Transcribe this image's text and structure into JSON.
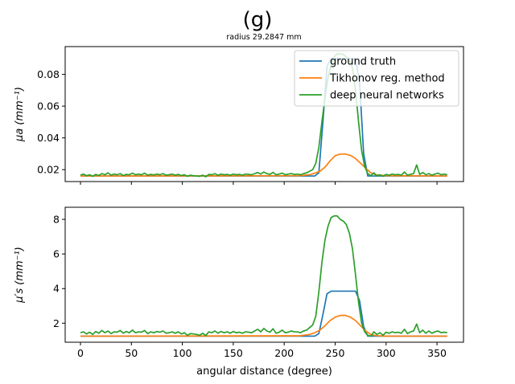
{
  "figure": {
    "title": "(g)",
    "subtitle": "radius 29.2847 mm"
  },
  "legend": {
    "placement": "top-right",
    "entries": [
      "ground truth",
      "Tikhonov reg. method",
      "deep neural networks"
    ]
  },
  "colors": {
    "ground_truth": "#1f77b4",
    "tikhonov": "#ff7f0e",
    "dnn": "#2ca02c"
  },
  "chart_data": [
    {
      "type": "line",
      "panel": "top",
      "ylabel": "μa (mm⁻¹)",
      "xlim": [
        -15,
        376
      ],
      "ylim": [
        0.0125,
        0.0975
      ],
      "yticks": [
        0.02,
        0.04,
        0.06,
        0.08
      ],
      "ytick_labels": [
        "0.02",
        "0.04",
        "0.06",
        "0.08"
      ],
      "xticks": [
        0,
        50,
        100,
        150,
        200,
        250,
        300,
        350
      ],
      "show_xtick_labels": false,
      "series": [
        {
          "name": "ground truth",
          "x": [
            0,
            230,
            234,
            238,
            242,
            246,
            250,
            270,
            274,
            278,
            282,
            360
          ],
          "y": [
            0.016,
            0.016,
            0.018,
            0.05,
            0.085,
            0.09,
            0.09,
            0.09,
            0.075,
            0.03,
            0.016,
            0.016
          ]
        },
        {
          "name": "Tikhonov reg. method",
          "x": [
            0,
            215,
            225,
            230,
            235,
            240,
            245,
            250,
            255,
            260,
            265,
            270,
            275,
            280,
            285,
            290,
            300,
            360
          ],
          "y": [
            0.016,
            0.0162,
            0.0168,
            0.0178,
            0.019,
            0.0215,
            0.0255,
            0.0288,
            0.0298,
            0.0298,
            0.029,
            0.027,
            0.024,
            0.021,
            0.018,
            0.0168,
            0.0162,
            0.016
          ]
        },
        {
          "name": "deep neural networks",
          "x": [
            0,
            3,
            6,
            9,
            12,
            15,
            18,
            21,
            24,
            27,
            30,
            33,
            36,
            39,
            42,
            45,
            48,
            51,
            54,
            57,
            60,
            63,
            66,
            69,
            72,
            75,
            78,
            81,
            84,
            87,
            90,
            93,
            96,
            99,
            102,
            105,
            108,
            111,
            114,
            117,
            120,
            123,
            126,
            129,
            132,
            135,
            138,
            141,
            144,
            147,
            150,
            153,
            156,
            159,
            162,
            165,
            168,
            171,
            174,
            177,
            180,
            183,
            186,
            189,
            192,
            195,
            198,
            201,
            204,
            207,
            210,
            213,
            216,
            219,
            222,
            225,
            228,
            231,
            234,
            237,
            240,
            243,
            246,
            249,
            252,
            255,
            258,
            261,
            264,
            267,
            270,
            273,
            276,
            279,
            282,
            285,
            288,
            291,
            294,
            297,
            300,
            303,
            306,
            309,
            312,
            315,
            318,
            321,
            324,
            327,
            330,
            333,
            336,
            339,
            342,
            345,
            348,
            351,
            354,
            357,
            360
          ],
          "y": [
            0.0165,
            0.0172,
            0.0162,
            0.0168,
            0.0158,
            0.017,
            0.0163,
            0.0175,
            0.0168,
            0.018,
            0.0165,
            0.0172,
            0.0168,
            0.0175,
            0.0163,
            0.017,
            0.0168,
            0.0178,
            0.0168,
            0.0172,
            0.0168,
            0.0178,
            0.0165,
            0.017,
            0.0167,
            0.0172,
            0.0168,
            0.0175,
            0.0165,
            0.0168,
            0.0172,
            0.0165,
            0.017,
            0.0163,
            0.0168,
            0.0158,
            0.0165,
            0.0162,
            0.016,
            0.0158,
            0.0165,
            0.0155,
            0.017,
            0.0168,
            0.0175,
            0.0165,
            0.0172,
            0.0168,
            0.017,
            0.0165,
            0.0172,
            0.0168,
            0.017,
            0.0165,
            0.0172,
            0.017,
            0.0168,
            0.0175,
            0.0182,
            0.0172,
            0.0185,
            0.0175,
            0.017,
            0.0183,
            0.0168,
            0.0172,
            0.0178,
            0.0168,
            0.0172,
            0.0175,
            0.017,
            0.0172,
            0.0168,
            0.0175,
            0.018,
            0.019,
            0.02,
            0.024,
            0.034,
            0.05,
            0.065,
            0.078,
            0.086,
            0.091,
            0.093,
            0.093,
            0.0925,
            0.091,
            0.089,
            0.084,
            0.07,
            0.05,
            0.032,
            0.022,
            0.0175,
            0.0162,
            0.018,
            0.016,
            0.0168,
            0.0158,
            0.017,
            0.0165,
            0.0172,
            0.0168,
            0.017,
            0.0165,
            0.0185,
            0.0165,
            0.017,
            0.0175,
            0.023,
            0.017,
            0.0182,
            0.0168,
            0.0175,
            0.0165,
            0.0172,
            0.0178,
            0.0168,
            0.0172,
            0.0168
          ]
        }
      ]
    },
    {
      "type": "line",
      "panel": "bottom",
      "xlabel": "angular distance (degree)",
      "ylabel": "μ′s (mm⁻¹)",
      "xlim": [
        -15,
        376
      ],
      "ylim": [
        0.9,
        8.7
      ],
      "yticks": [
        2,
        4,
        6,
        8
      ],
      "ytick_labels": [
        "2",
        "4",
        "6",
        "8"
      ],
      "xticks": [
        0,
        50,
        100,
        150,
        200,
        250,
        300,
        350
      ],
      "xtick_labels": [
        "0",
        "50",
        "100",
        "150",
        "200",
        "250",
        "300",
        "350"
      ],
      "series": [
        {
          "name": "ground truth",
          "x": [
            0,
            230,
            234,
            238,
            242,
            246,
            250,
            270,
            274,
            278,
            282,
            360
          ],
          "y": [
            1.25,
            1.25,
            1.4,
            2.5,
            3.7,
            3.85,
            3.85,
            3.85,
            3.3,
            1.8,
            1.25,
            1.25
          ]
        },
        {
          "name": "Tikhonov reg. method",
          "x": [
            0,
            215,
            225,
            230,
            235,
            240,
            245,
            250,
            255,
            260,
            265,
            270,
            275,
            280,
            285,
            290,
            300,
            360
          ],
          "y": [
            1.25,
            1.27,
            1.35,
            1.45,
            1.6,
            1.85,
            2.15,
            2.35,
            2.45,
            2.45,
            2.35,
            2.15,
            1.85,
            1.55,
            1.35,
            1.28,
            1.25,
            1.25
          ]
        },
        {
          "name": "deep neural networks",
          "x": [
            0,
            3,
            6,
            9,
            12,
            15,
            18,
            21,
            24,
            27,
            30,
            33,
            36,
            39,
            42,
            45,
            48,
            51,
            54,
            57,
            60,
            63,
            66,
            69,
            72,
            75,
            78,
            81,
            84,
            87,
            90,
            93,
            96,
            99,
            102,
            105,
            108,
            111,
            114,
            117,
            120,
            123,
            126,
            129,
            132,
            135,
            138,
            141,
            144,
            147,
            150,
            153,
            156,
            159,
            162,
            165,
            168,
            171,
            174,
            177,
            180,
            183,
            186,
            189,
            192,
            195,
            198,
            201,
            204,
            207,
            210,
            213,
            216,
            219,
            222,
            225,
            228,
            231,
            234,
            237,
            240,
            243,
            246,
            249,
            252,
            255,
            258,
            261,
            264,
            267,
            270,
            273,
            276,
            279,
            282,
            285,
            288,
            291,
            294,
            297,
            300,
            303,
            306,
            309,
            312,
            315,
            318,
            321,
            324,
            327,
            330,
            333,
            336,
            339,
            342,
            345,
            348,
            351,
            354,
            357,
            360
          ],
          "y": [
            1.45,
            1.5,
            1.38,
            1.48,
            1.35,
            1.52,
            1.42,
            1.58,
            1.45,
            1.55,
            1.4,
            1.5,
            1.48,
            1.58,
            1.42,
            1.52,
            1.45,
            1.6,
            1.45,
            1.5,
            1.48,
            1.58,
            1.4,
            1.5,
            1.45,
            1.52,
            1.48,
            1.55,
            1.42,
            1.45,
            1.5,
            1.42,
            1.5,
            1.38,
            1.45,
            1.3,
            1.4,
            1.38,
            1.35,
            1.3,
            1.42,
            1.28,
            1.5,
            1.45,
            1.55,
            1.42,
            1.52,
            1.45,
            1.5,
            1.42,
            1.52,
            1.45,
            1.48,
            1.42,
            1.5,
            1.48,
            1.45,
            1.55,
            1.65,
            1.5,
            1.7,
            1.55,
            1.48,
            1.68,
            1.42,
            1.48,
            1.6,
            1.45,
            1.48,
            1.55,
            1.5,
            1.5,
            1.45,
            1.55,
            1.6,
            1.75,
            1.9,
            2.4,
            3.8,
            5.5,
            6.8,
            7.6,
            8.1,
            8.2,
            8.2,
            8.0,
            7.9,
            7.7,
            7.2,
            6.3,
            4.8,
            3.2,
            2.0,
            1.5,
            1.3,
            1.25,
            1.5,
            1.35,
            1.45,
            1.3,
            1.48,
            1.42,
            1.5,
            1.45,
            1.48,
            1.42,
            1.65,
            1.4,
            1.5,
            1.55,
            1.95,
            1.45,
            1.6,
            1.42,
            1.55,
            1.42,
            1.5,
            1.55,
            1.45,
            1.48,
            1.45
          ]
        }
      ]
    }
  ]
}
